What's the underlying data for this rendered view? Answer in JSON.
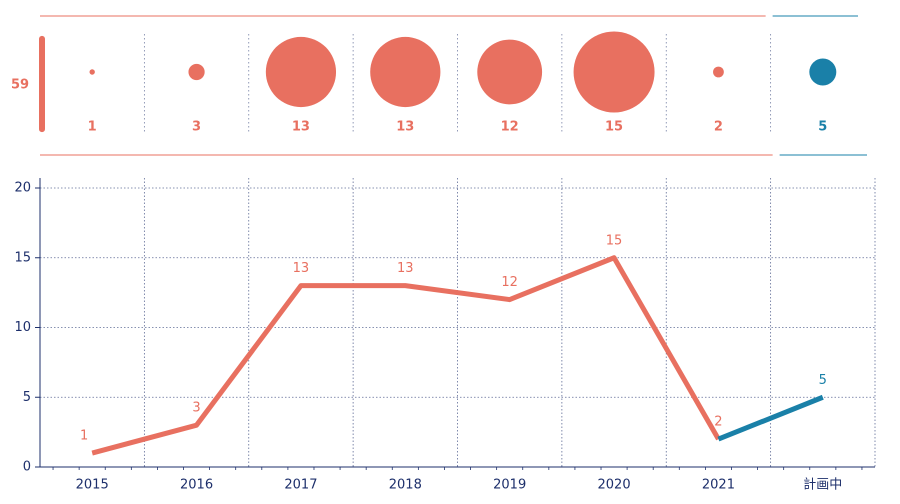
{
  "chart_data": [
    {
      "type": "bubble",
      "total": 59,
      "values": [
        1,
        3,
        13,
        13,
        12,
        15,
        2,
        5
      ],
      "colors": [
        "#e87060",
        "#e87060",
        "#e87060",
        "#e87060",
        "#e87060",
        "#e87060",
        "#e87060",
        "#1a80a8"
      ]
    },
    {
      "type": "line",
      "categories": [
        "2015",
        "2016",
        "2017",
        "2018",
        "2019",
        "2020",
        "2021",
        "計画中"
      ],
      "values": [
        1,
        3,
        13,
        13,
        12,
        15,
        2,
        5
      ],
      "colors": [
        "#e87060",
        "#e87060",
        "#e87060",
        "#e87060",
        "#e87060",
        "#e87060",
        "#e87060",
        "#1a80a8"
      ],
      "ylim": [
        0,
        20
      ],
      "yticks": [
        0,
        5,
        10,
        15,
        20
      ],
      "grid": true
    }
  ]
}
